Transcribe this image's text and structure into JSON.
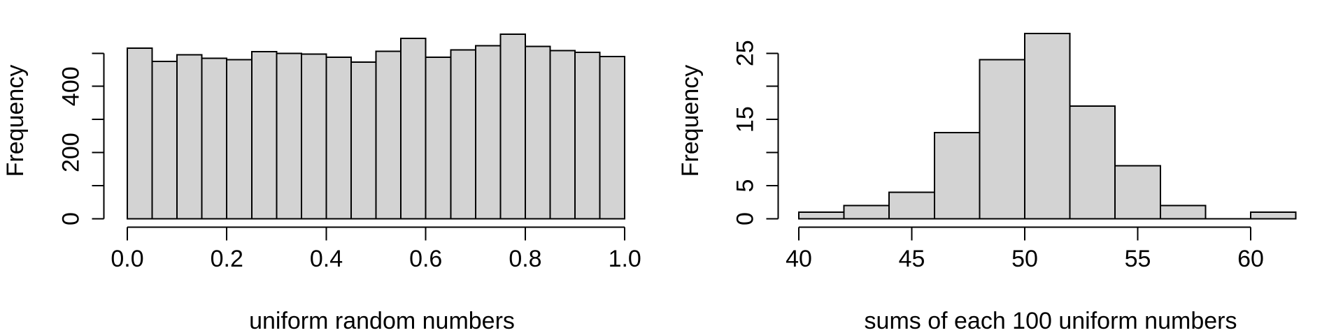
{
  "figure": {
    "background": "#ffffff",
    "bar_fill": "#d3d3d3",
    "bar_stroke": "#000000",
    "text_color": "#000000"
  },
  "chart_data": [
    {
      "type": "bar",
      "subtype": "histogram",
      "title": "",
      "xlabel": "uniform random numbers",
      "ylabel": "Frequency",
      "bin_start": 0,
      "bin_width": 0.05,
      "values": [
        515,
        475,
        495,
        485,
        480,
        505,
        500,
        497,
        488,
        473,
        506,
        545,
        488,
        510,
        523,
        557,
        521,
        508,
        503,
        490
      ],
      "x_ticks": [
        0,
        0.2,
        0.4,
        0.6,
        0.8,
        1
      ],
      "x_tick_labels": [
        "0.0",
        "0.2",
        "0.4",
        "0.6",
        "0.8",
        "1.0"
      ],
      "y_ticks": [
        0,
        100,
        200,
        300,
        400,
        500
      ],
      "y_tick_labels": [
        "0",
        "",
        "200",
        "",
        "400",
        ""
      ],
      "xlim": [
        0,
        1
      ],
      "ylim": [
        0,
        560
      ],
      "grid": false,
      "legend": "none"
    },
    {
      "type": "bar",
      "subtype": "histogram",
      "title": "",
      "xlabel": "sums of each 100 uniform numbers",
      "ylabel": "Frequency",
      "bin_start": 40,
      "bin_width": 2,
      "values": [
        1,
        2,
        4,
        13,
        24,
        28,
        17,
        8,
        2,
        0,
        1
      ],
      "x_ticks": [
        40,
        45,
        50,
        55,
        60
      ],
      "x_tick_labels": [
        "40",
        "45",
        "50",
        "55",
        "60"
      ],
      "y_ticks": [
        0,
        5,
        10,
        15,
        20,
        25
      ],
      "y_tick_labels": [
        "0",
        "5",
        "",
        "15",
        "",
        "25"
      ],
      "xlim": [
        40,
        62
      ],
      "ylim": [
        0,
        28
      ],
      "grid": false,
      "legend": "none"
    }
  ]
}
